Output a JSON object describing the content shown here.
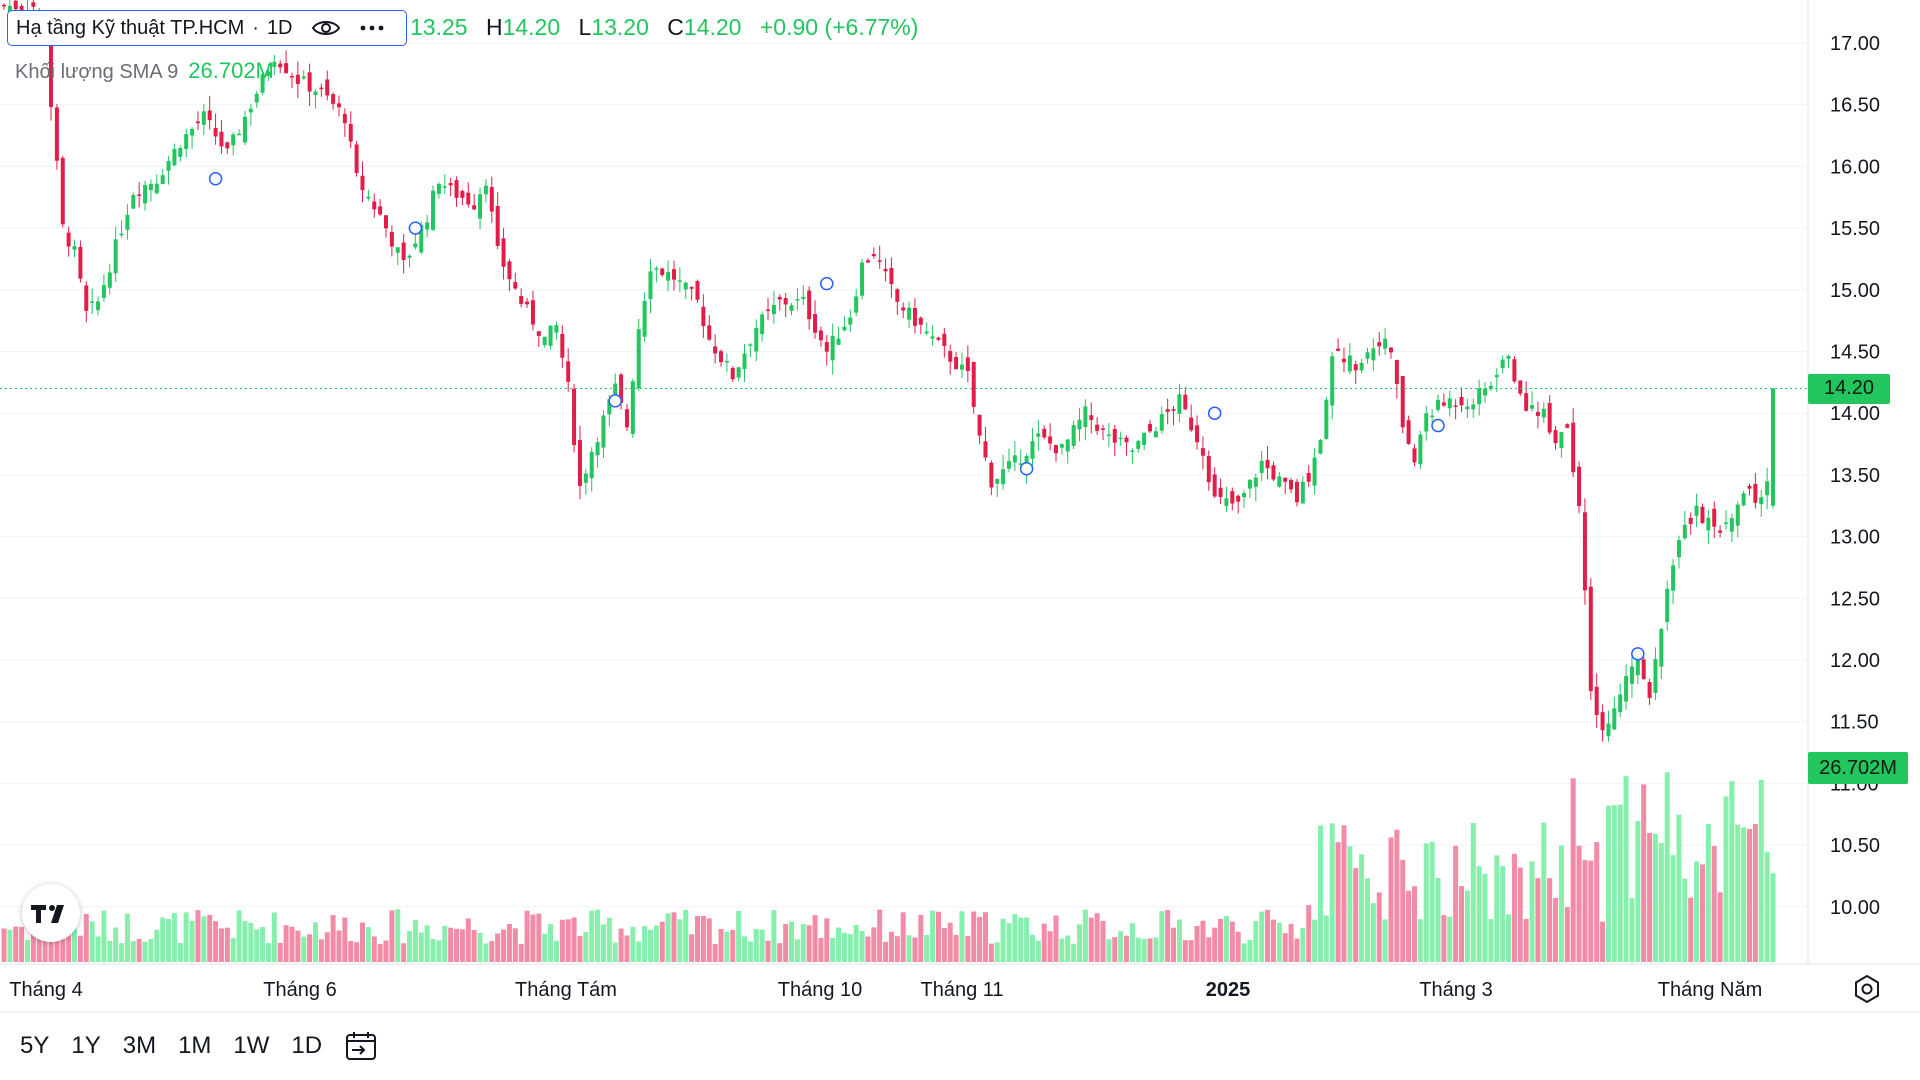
{
  "legend": {
    "symbol": "Hạ tầng Kỹ thuật TP.HCM",
    "separator": "·",
    "interval": "1D",
    "eye_icon": "eye-icon",
    "more_icon": "more-dots-icon"
  },
  "ohlc": {
    "open_value": "13.25",
    "high_key": "H",
    "high_value": "14.20",
    "low_key": "L",
    "low_value": "13.20",
    "close_key": "C",
    "close_value": "14.20",
    "change": "+0.90 (+6.77%)"
  },
  "volume_legend": {
    "label": "Khối lượng SMA 9",
    "value": "26.702M"
  },
  "price_badge": "14.20",
  "volume_badge": "26.702M",
  "range_buttons": [
    "5Y",
    "1Y",
    "3M",
    "1M",
    "1W",
    "1D"
  ],
  "calendar_icon": "calendar-range-icon",
  "settings_icon": "settings-gear-icon",
  "logo": "tradingview-logo",
  "colors": {
    "up": "#22c55e",
    "down": "#e11d48",
    "vol_up": "#86efac",
    "vol_down": "#f28ba5",
    "accent": "#2962ff"
  },
  "chart_data": {
    "type": "candlestick",
    "y_axis": {
      "ticks": [
        "10.00",
        "10.50",
        "11.00",
        "11.50",
        "12.00",
        "12.50",
        "13.00",
        "13.50",
        "14.00",
        "14.50",
        "15.00",
        "15.50",
        "16.00",
        "16.50",
        "17.00"
      ],
      "range": [
        9.7,
        17.15
      ]
    },
    "x_axis": {
      "labels": [
        "Tháng 4",
        "Tháng 6",
        "Tháng Tám",
        "Tháng 10",
        "Tháng 11",
        "2025",
        "Tháng 3",
        "Tháng Năm"
      ],
      "bold_label": "2025"
    },
    "last_price": 14.2,
    "grid": "horizontal",
    "waypoints": [
      [
        0,
        17.3
      ],
      [
        5,
        17.3
      ],
      [
        7,
        17.1
      ],
      [
        8,
        16.5
      ],
      [
        10,
        15.5
      ],
      [
        12,
        15.3
      ],
      [
        14,
        14.8
      ],
      [
        16,
        14.9
      ],
      [
        18,
        15.2
      ],
      [
        22,
        15.8
      ],
      [
        26,
        15.9
      ],
      [
        30,
        16.2
      ],
      [
        34,
        16.4
      ],
      [
        38,
        16.1
      ],
      [
        42,
        16.5
      ],
      [
        46,
        16.9
      ],
      [
        50,
        16.7
      ],
      [
        54,
        16.6
      ],
      [
        58,
        16.4
      ],
      [
        60,
        15.9
      ],
      [
        64,
        15.6
      ],
      [
        66,
        15.4
      ],
      [
        68,
        15.2
      ],
      [
        72,
        15.6
      ],
      [
        74,
        15.9
      ],
      [
        76,
        15.8
      ],
      [
        80,
        15.7
      ],
      [
        82,
        15.9
      ],
      [
        84,
        15.3
      ],
      [
        88,
        14.9
      ],
      [
        92,
        14.6
      ],
      [
        94,
        14.7
      ],
      [
        96,
        14.2
      ],
      [
        98,
        13.4
      ],
      [
        100,
        13.7
      ],
      [
        104,
        14.2
      ],
      [
        106,
        13.9
      ],
      [
        108,
        14.7
      ],
      [
        110,
        15.2
      ],
      [
        114,
        15.1
      ],
      [
        118,
        14.9
      ],
      [
        120,
        14.6
      ],
      [
        124,
        14.3
      ],
      [
        128,
        14.7
      ],
      [
        132,
        14.9
      ],
      [
        136,
        14.9
      ],
      [
        140,
        14.5
      ],
      [
        144,
        14.8
      ],
      [
        146,
        15.2
      ],
      [
        148,
        15.3
      ],
      [
        152,
        14.9
      ],
      [
        156,
        14.7
      ],
      [
        160,
        14.5
      ],
      [
        164,
        14.3
      ],
      [
        166,
        13.8
      ],
      [
        168,
        13.45
      ],
      [
        172,
        13.6
      ],
      [
        176,
        13.8
      ],
      [
        180,
        13.7
      ],
      [
        184,
        14.0
      ],
      [
        188,
        13.8
      ],
      [
        192,
        13.7
      ],
      [
        196,
        13.9
      ],
      [
        200,
        14.1
      ],
      [
        204,
        13.7
      ],
      [
        206,
        13.3
      ],
      [
        210,
        13.25
      ],
      [
        214,
        13.6
      ],
      [
        218,
        13.4
      ],
      [
        220,
        13.3
      ],
      [
        222,
        13.5
      ],
      [
        224,
        13.8
      ],
      [
        226,
        14.5
      ],
      [
        230,
        14.4
      ],
      [
        234,
        14.6
      ],
      [
        236,
        14.5
      ],
      [
        238,
        13.9
      ],
      [
        240,
        13.6
      ],
      [
        242,
        14.0
      ],
      [
        246,
        14.1
      ],
      [
        250,
        14.1
      ],
      [
        254,
        14.3
      ],
      [
        256,
        14.5
      ],
      [
        258,
        14.1
      ],
      [
        262,
        14.0
      ],
      [
        264,
        13.8
      ],
      [
        266,
        13.9
      ],
      [
        268,
        13.25
      ],
      [
        270,
        11.8
      ],
      [
        272,
        11.4
      ],
      [
        276,
        11.9
      ],
      [
        278,
        12.0
      ],
      [
        280,
        11.75
      ],
      [
        282,
        12.3
      ],
      [
        284,
        12.8
      ],
      [
        286,
        13.1
      ],
      [
        288,
        13.2
      ],
      [
        292,
        13.0
      ],
      [
        296,
        13.4
      ],
      [
        298,
        13.3
      ],
      [
        300,
        13.4
      ],
      [
        301,
        14.2
      ]
    ]
  }
}
